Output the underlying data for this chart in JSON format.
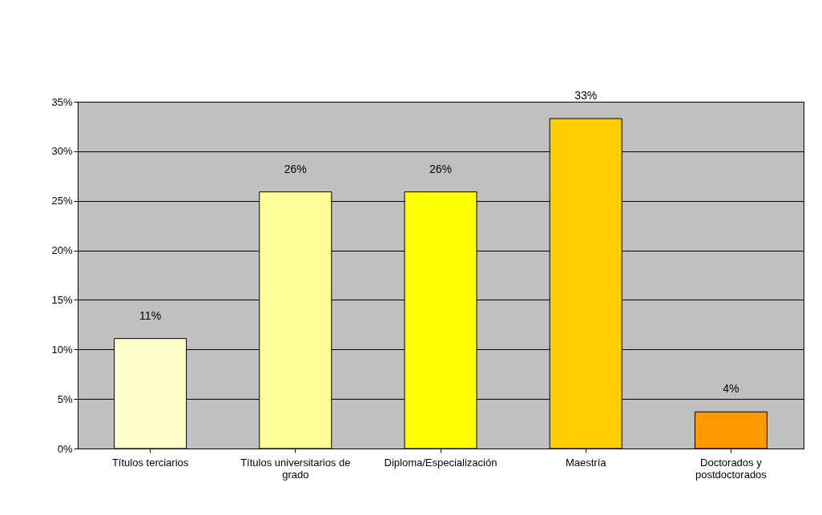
{
  "chart_data": {
    "type": "bar",
    "categories": [
      "Títulos terciarios",
      "Títulos universitarios de grado",
      "Diploma/Especialización",
      "Maestría",
      "Doctorados y postdoctorados"
    ],
    "values": [
      11.1,
      25.9,
      25.9,
      33.3,
      3.7
    ],
    "colors": [
      "#ffffcc",
      "#ffff99",
      "#ffff00",
      "#ffcc00",
      "#ff9900"
    ],
    "value_labels": [
      "11%",
      "26%",
      "26%",
      "33%",
      "4%"
    ],
    "ylim": [
      0,
      35
    ],
    "yticks": [
      {
        "value": 0,
        "label": "0%"
      },
      {
        "value": 5,
        "label": "5%"
      },
      {
        "value": 10,
        "label": "10%"
      },
      {
        "value": 15,
        "label": "15%"
      },
      {
        "value": 20,
        "label": "20%"
      },
      {
        "value": 25,
        "label": "25%"
      },
      {
        "value": 30,
        "label": "30%"
      },
      {
        "value": 35,
        "label": "35%"
      }
    ],
    "grid": "y"
  }
}
